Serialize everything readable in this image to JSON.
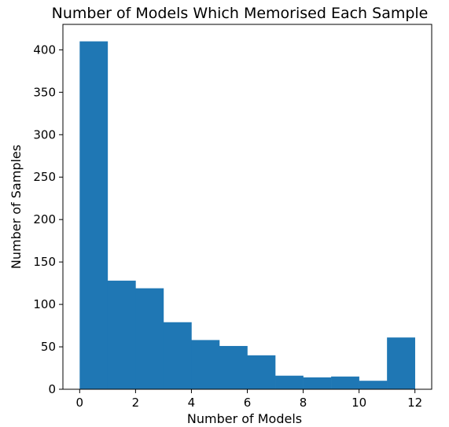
{
  "chart_data": {
    "type": "bar",
    "title": "Number of Models Which Memorised Each Sample",
    "xlabel": "Number of Models",
    "ylabel": "Number of Samples",
    "bin_edges": [
      0,
      1,
      2,
      3,
      4,
      5,
      6,
      7,
      8,
      9,
      10,
      11,
      12
    ],
    "values": [
      410,
      128,
      119,
      79,
      58,
      51,
      40,
      16,
      14,
      15,
      10,
      61
    ],
    "xlim": [
      -0.6,
      12.6
    ],
    "ylim": [
      0,
      430
    ],
    "xticks": [
      0,
      2,
      4,
      6,
      8,
      10,
      12
    ],
    "yticks": [
      0,
      50,
      100,
      150,
      200,
      250,
      300,
      350,
      400
    ],
    "bar_color": "#1f77b4",
    "grid": false,
    "legend": "none"
  }
}
